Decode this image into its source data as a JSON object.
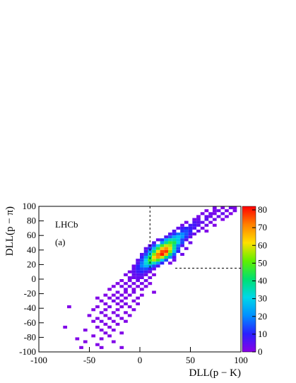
{
  "chart_data": {
    "type": "heatmap",
    "x_label": "DLL(p − K)",
    "y_label": "DLL(p − π)",
    "annotations": [
      "LHCb",
      "(a)"
    ],
    "xlim": [
      -100,
      100
    ],
    "xticks": [
      -100,
      -50,
      0,
      50,
      100
    ],
    "ylim": [
      -100,
      100
    ],
    "yticks": [
      -100,
      -80,
      -60,
      -40,
      -20,
      0,
      20,
      40,
      60,
      80,
      100
    ],
    "zlim": [
      0,
      82
    ],
    "zticks": [
      0,
      10,
      20,
      30,
      40,
      50,
      60,
      70,
      80
    ],
    "colormap": [
      "#8a00e6",
      "#2a20ff",
      "#0090ff",
      "#00d8e8",
      "#00e070",
      "#60f000",
      "#ffe000",
      "#ff8000",
      "#ff0000"
    ],
    "bin_width": 4,
    "cut_lines": [
      {
        "x": [
          10,
          10
        ],
        "y": [
          100,
          15
        ]
      },
      {
        "x": [
          35,
          100
        ],
        "y": [
          15,
          15
        ]
      }
    ],
    "cells": [
      [
        72,
        96,
        2
      ],
      [
        80,
        96,
        1
      ],
      [
        88,
        96,
        3
      ],
      [
        92,
        96,
        1
      ],
      [
        64,
        92,
        1
      ],
      [
        72,
        92,
        2
      ],
      [
        76,
        92,
        3
      ],
      [
        84,
        92,
        2
      ],
      [
        92,
        92,
        2
      ],
      [
        60,
        88,
        2
      ],
      [
        68,
        88,
        3
      ],
      [
        72,
        88,
        2
      ],
      [
        80,
        88,
        4
      ],
      [
        88,
        88,
        1
      ],
      [
        56,
        84,
        2
      ],
      [
        64,
        84,
        4
      ],
      [
        68,
        84,
        3
      ],
      [
        76,
        84,
        3
      ],
      [
        84,
        84,
        2
      ],
      [
        52,
        80,
        3
      ],
      [
        56,
        80,
        4
      ],
      [
        64,
        80,
        5
      ],
      [
        72,
        80,
        3
      ],
      [
        80,
        80,
        1
      ],
      [
        44,
        76,
        2
      ],
      [
        52,
        76,
        6
      ],
      [
        56,
        76,
        5
      ],
      [
        60,
        76,
        4
      ],
      [
        68,
        76,
        2
      ],
      [
        40,
        72,
        3
      ],
      [
        48,
        72,
        7
      ],
      [
        52,
        72,
        8
      ],
      [
        56,
        72,
        5
      ],
      [
        64,
        72,
        3
      ],
      [
        72,
        72,
        1
      ],
      [
        36,
        68,
        4
      ],
      [
        40,
        68,
        8
      ],
      [
        44,
        68,
        10
      ],
      [
        48,
        68,
        9
      ],
      [
        52,
        68,
        6
      ],
      [
        60,
        68,
        2
      ],
      [
        32,
        64,
        6
      ],
      [
        40,
        64,
        12
      ],
      [
        44,
        64,
        14
      ],
      [
        48,
        64,
        10
      ],
      [
        56,
        64,
        4
      ],
      [
        64,
        64,
        1
      ],
      [
        28,
        60,
        5
      ],
      [
        32,
        60,
        12
      ],
      [
        36,
        60,
        18
      ],
      [
        40,
        60,
        20
      ],
      [
        44,
        60,
        15
      ],
      [
        48,
        60,
        8
      ],
      [
        52,
        60,
        3
      ],
      [
        24,
        56,
        6
      ],
      [
        28,
        56,
        15
      ],
      [
        32,
        56,
        24
      ],
      [
        36,
        56,
        28
      ],
      [
        40,
        56,
        22
      ],
      [
        44,
        56,
        12
      ],
      [
        48,
        56,
        4
      ],
      [
        16,
        52,
        4
      ],
      [
        20,
        52,
        12
      ],
      [
        24,
        52,
        25
      ],
      [
        28,
        52,
        35
      ],
      [
        32,
        52,
        36
      ],
      [
        36,
        52,
        28
      ],
      [
        40,
        52,
        14
      ],
      [
        44,
        52,
        5
      ],
      [
        12,
        48,
        6
      ],
      [
        20,
        48,
        22
      ],
      [
        24,
        48,
        38
      ],
      [
        28,
        48,
        48
      ],
      [
        32,
        48,
        44
      ],
      [
        36,
        48,
        30
      ],
      [
        40,
        48,
        14
      ],
      [
        48,
        48,
        3
      ],
      [
        8,
        44,
        5
      ],
      [
        12,
        44,
        14
      ],
      [
        16,
        44,
        30
      ],
      [
        20,
        44,
        48
      ],
      [
        24,
        44,
        58
      ],
      [
        28,
        44,
        56
      ],
      [
        32,
        44,
        38
      ],
      [
        36,
        44,
        18
      ],
      [
        40,
        44,
        6
      ],
      [
        4,
        40,
        4
      ],
      [
        8,
        40,
        12
      ],
      [
        12,
        40,
        26
      ],
      [
        16,
        40,
        46
      ],
      [
        20,
        40,
        64
      ],
      [
        24,
        40,
        70
      ],
      [
        28,
        40,
        60
      ],
      [
        32,
        40,
        36
      ],
      [
        36,
        40,
        14
      ],
      [
        44,
        40,
        3
      ],
      [
        4,
        36,
        8
      ],
      [
        8,
        36,
        22
      ],
      [
        12,
        36,
        40
      ],
      [
        16,
        36,
        62
      ],
      [
        20,
        36,
        76
      ],
      [
        24,
        36,
        78
      ],
      [
        28,
        36,
        54
      ],
      [
        32,
        36,
        28
      ],
      [
        36,
        36,
        10
      ],
      [
        0,
        32,
        5
      ],
      [
        4,
        32,
        14
      ],
      [
        8,
        32,
        32
      ],
      [
        12,
        32,
        54
      ],
      [
        16,
        32,
        72
      ],
      [
        20,
        32,
        80
      ],
      [
        24,
        32,
        66
      ],
      [
        28,
        32,
        40
      ],
      [
        32,
        32,
        16
      ],
      [
        40,
        32,
        3
      ],
      [
        0,
        28,
        10
      ],
      [
        4,
        28,
        22
      ],
      [
        8,
        28,
        42
      ],
      [
        12,
        28,
        62
      ],
      [
        16,
        28,
        70
      ],
      [
        20,
        28,
        58
      ],
      [
        24,
        28,
        40
      ],
      [
        28,
        28,
        20
      ],
      [
        32,
        28,
        6
      ],
      [
        -4,
        24,
        4
      ],
      [
        0,
        24,
        14
      ],
      [
        4,
        24,
        30
      ],
      [
        8,
        24,
        48
      ],
      [
        12,
        24,
        56
      ],
      [
        16,
        24,
        48
      ],
      [
        20,
        24,
        30
      ],
      [
        24,
        24,
        14
      ],
      [
        32,
        24,
        3
      ],
      [
        -4,
        20,
        6
      ],
      [
        0,
        20,
        18
      ],
      [
        4,
        20,
        32
      ],
      [
        8,
        20,
        40
      ],
      [
        12,
        20,
        34
      ],
      [
        16,
        20,
        22
      ],
      [
        20,
        20,
        10
      ],
      [
        28,
        20,
        2
      ],
      [
        -8,
        16,
        3
      ],
      [
        -4,
        16,
        10
      ],
      [
        0,
        16,
        20
      ],
      [
        4,
        16,
        26
      ],
      [
        8,
        16,
        22
      ],
      [
        12,
        16,
        14
      ],
      [
        16,
        16,
        6
      ],
      [
        -8,
        12,
        4
      ],
      [
        -4,
        12,
        10
      ],
      [
        0,
        12,
        14
      ],
      [
        4,
        12,
        14
      ],
      [
        8,
        12,
        10
      ],
      [
        12,
        12,
        4
      ],
      [
        -12,
        8,
        2
      ],
      [
        -8,
        8,
        5
      ],
      [
        -4,
        8,
        8
      ],
      [
        0,
        8,
        10
      ],
      [
        4,
        8,
        7
      ],
      [
        8,
        8,
        3
      ],
      [
        -16,
        4,
        2
      ],
      [
        -8,
        4,
        4
      ],
      [
        -4,
        4,
        5
      ],
      [
        0,
        4,
        6
      ],
      [
        4,
        4,
        3
      ],
      [
        12,
        4,
        1
      ],
      [
        -12,
        0,
        2
      ],
      [
        -8,
        0,
        3
      ],
      [
        -4,
        0,
        4
      ],
      [
        0,
        0,
        3
      ],
      [
        8,
        0,
        2
      ],
      [
        -20,
        -4,
        1
      ],
      [
        -12,
        -4,
        2
      ],
      [
        -4,
        -4,
        3
      ],
      [
        4,
        -4,
        2
      ],
      [
        -24,
        -8,
        1
      ],
      [
        -16,
        -8,
        2
      ],
      [
        -8,
        -8,
        2
      ],
      [
        0,
        -8,
        2
      ],
      [
        8,
        -8,
        1
      ],
      [
        -28,
        -12,
        1
      ],
      [
        -20,
        -12,
        2
      ],
      [
        -12,
        -12,
        2
      ],
      [
        -4,
        -12,
        1
      ],
      [
        4,
        -12,
        1
      ],
      [
        -32,
        -16,
        1
      ],
      [
        -16,
        -16,
        2
      ],
      [
        -8,
        -16,
        1
      ],
      [
        0,
        -16,
        1
      ],
      [
        -24,
        -20,
        2
      ],
      [
        -16,
        -20,
        1
      ],
      [
        -8,
        -20,
        2
      ],
      [
        12,
        -20,
        1
      ],
      [
        -36,
        -24,
        1
      ],
      [
        -28,
        -24,
        1
      ],
      [
        -20,
        -24,
        2
      ],
      [
        -12,
        -24,
        1
      ],
      [
        0,
        -24,
        1
      ],
      [
        -44,
        -28,
        1
      ],
      [
        -32,
        -28,
        1
      ],
      [
        -24,
        -28,
        2
      ],
      [
        -16,
        -28,
        1
      ],
      [
        -4,
        -28,
        1
      ],
      [
        -40,
        -32,
        1
      ],
      [
        -28,
        -32,
        2
      ],
      [
        -20,
        -32,
        1
      ],
      [
        -8,
        -32,
        1
      ],
      [
        -36,
        -36,
        1
      ],
      [
        -24,
        -36,
        1
      ],
      [
        -16,
        -36,
        2
      ],
      [
        -4,
        -36,
        1
      ],
      [
        -72,
        -40,
        1
      ],
      [
        -44,
        -40,
        1
      ],
      [
        -32,
        -40,
        2
      ],
      [
        -20,
        -40,
        1
      ],
      [
        -12,
        -40,
        1
      ],
      [
        -48,
        -44,
        1
      ],
      [
        -36,
        -44,
        1
      ],
      [
        -24,
        -44,
        1
      ],
      [
        -8,
        -44,
        1
      ],
      [
        -40,
        -48,
        2
      ],
      [
        -28,
        -48,
        1
      ],
      [
        -16,
        -48,
        1
      ],
      [
        -52,
        -52,
        1
      ],
      [
        -36,
        -52,
        1
      ],
      [
        -24,
        -52,
        2
      ],
      [
        -12,
        -52,
        1
      ],
      [
        -44,
        -56,
        1
      ],
      [
        -32,
        -56,
        1
      ],
      [
        -20,
        -56,
        1
      ],
      [
        -48,
        -60,
        1
      ],
      [
        -40,
        -60,
        2
      ],
      [
        -28,
        -60,
        1
      ],
      [
        -16,
        -60,
        1
      ],
      [
        -36,
        -64,
        1
      ],
      [
        -24,
        -64,
        1
      ],
      [
        -76,
        -68,
        1
      ],
      [
        -44,
        -68,
        1
      ],
      [
        -32,
        -68,
        1
      ],
      [
        -56,
        -72,
        1
      ],
      [
        -40,
        -72,
        1
      ],
      [
        -28,
        -72,
        1
      ],
      [
        -36,
        -76,
        1
      ],
      [
        -20,
        -76,
        1
      ],
      [
        -48,
        -80,
        1
      ],
      [
        -32,
        -80,
        1
      ],
      [
        -64,
        -84,
        1
      ],
      [
        -40,
        -84,
        1
      ],
      [
        -56,
        -88,
        1
      ],
      [
        -28,
        -88,
        1
      ],
      [
        -44,
        -92,
        1
      ],
      [
        -60,
        -96,
        1
      ],
      [
        -40,
        -96,
        1
      ],
      [
        -20,
        -96,
        1
      ]
    ]
  }
}
